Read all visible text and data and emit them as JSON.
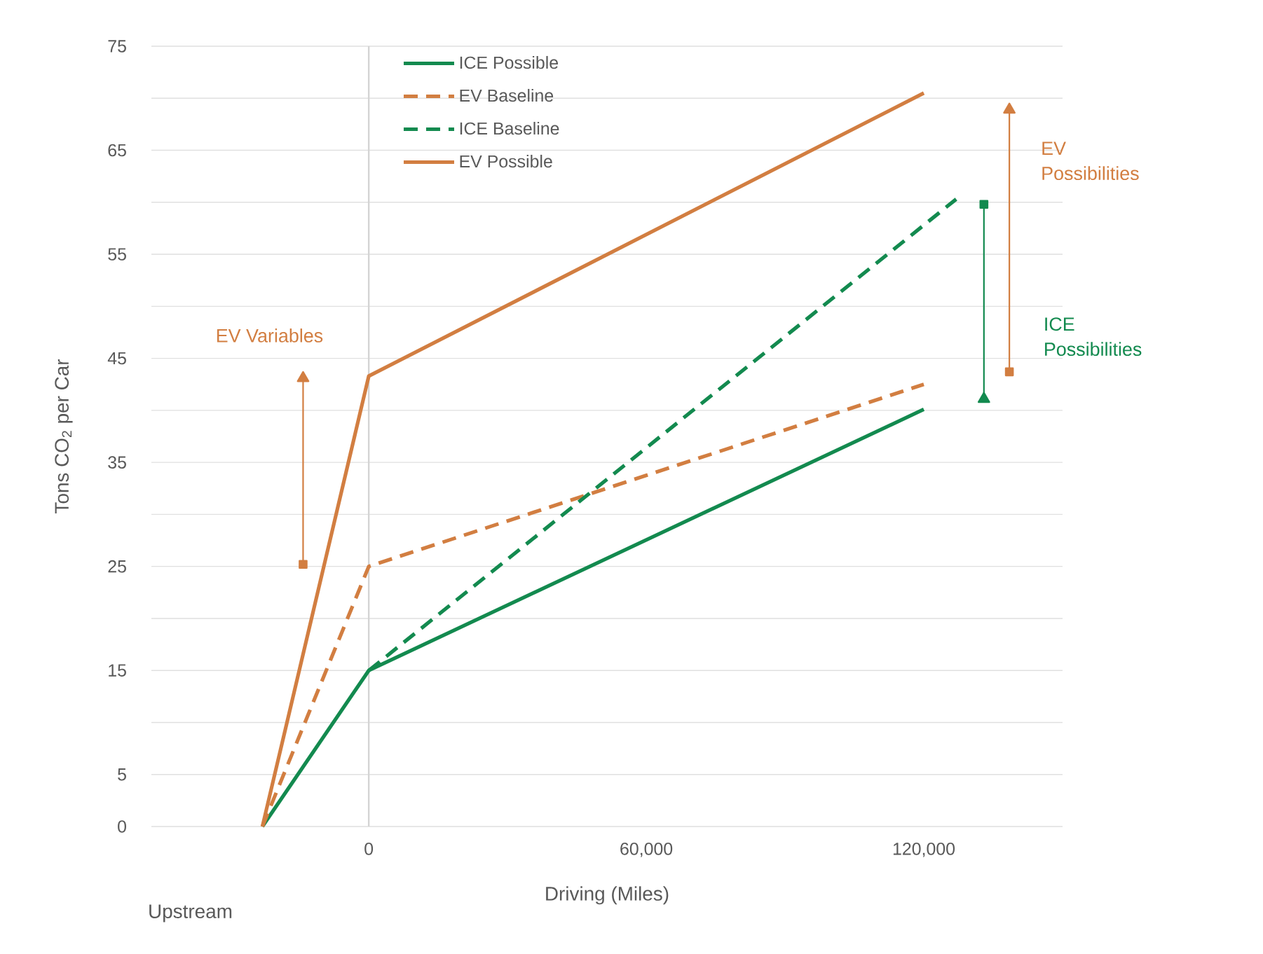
{
  "chart_data": {
    "type": "line",
    "xlabel": "Driving (Miles)",
    "ylabel": "Tons CO$_{2}$ per Car",
    "xlim": [
      -47000,
      150000
    ],
    "ylim": [
      0,
      75
    ],
    "xticks": [
      0,
      {
        "value": 60000,
        "label": "60,000"
      },
      {
        "value": 120000,
        "label": "120,000"
      }
    ],
    "yticks": [
      0,
      5,
      {
        "value": 10,
        "label": null
      },
      15,
      {
        "value": 20,
        "label": null
      },
      25,
      {
        "value": 30,
        "label": null
      },
      35,
      {
        "value": 40,
        "label": null
      },
      45,
      {
        "value": 50,
        "label": null
      },
      55,
      {
        "value": 60,
        "label": null
      },
      65,
      {
        "value": 70,
        "label": null
      },
      75
    ],
    "grid": "y",
    "legend": "top left",
    "ref_lines": [
      {
        "axis": "x",
        "value": 0,
        "color": "#d4d4d4"
      }
    ],
    "series": [
      {
        "name": "ICE Possible",
        "color": "#138a4f",
        "line_style": "solid",
        "x": [
          -23000,
          0,
          120000
        ],
        "values": [
          0,
          15,
          40.1
        ]
      },
      {
        "name": "EV Baseline",
        "color": "#d27e41",
        "line_style": "dashed",
        "x": [
          -23000,
          0,
          120000
        ],
        "values": [
          0,
          25,
          42.5
        ]
      },
      {
        "name": "ICE Baseline",
        "color": "#138a4f",
        "line_style": "dashed",
        "x": [
          0,
          127000
        ],
        "values": [
          15,
          60.3
        ]
      },
      {
        "name": "EV Possible",
        "color": "#d27e41",
        "line_style": "solid",
        "x": [
          -23000,
          0,
          120000
        ],
        "values": [
          0,
          43.3,
          70.5
        ]
      },
      {
        "color": "#d27e41",
        "line_style": "solid",
        "marker": "square",
        "x": [
          -14200,
          -14200
        ],
        "values": [
          25.2,
          43.1
        ]
      },
      {
        "color": "#d27e41",
        "line_style": "solid",
        "marker": "square",
        "x": [
          138500,
          138500
        ],
        "values": [
          43.7,
          68.9
        ]
      },
      {
        "color": "#138a4f",
        "line_style": "solid",
        "marker": "square",
        "x": [
          133000,
          133000
        ],
        "values": [
          59.8,
          41.1
        ]
      }
    ],
    "annotations": [
      "EV Variables",
      "EV Possibilities",
      "ICE Possibilities",
      "Upstream"
    ]
  }
}
